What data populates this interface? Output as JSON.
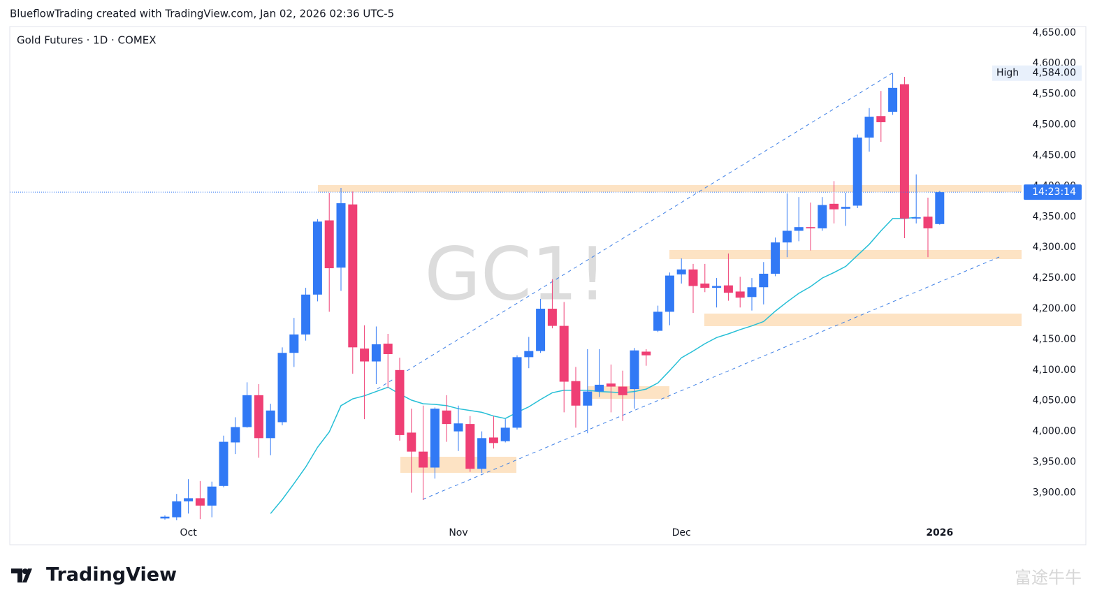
{
  "header": "BlueflowTrading created with TradingView.com, Jan 02, 2026 02:36 UTC-5",
  "chart_data": {
    "type": "candlestick",
    "title": "Gold Futures · 1D · COMEX",
    "watermark": "GC1!",
    "categories": [
      null,
      null,
      "Oct",
      null,
      null,
      null,
      null,
      null,
      null,
      null,
      null,
      null,
      null,
      null,
      null,
      null,
      null,
      null,
      null,
      null,
      null,
      null,
      null,
      null,
      null,
      "Nov",
      null,
      null,
      null,
      null,
      null,
      null,
      null,
      null,
      null,
      null,
      null,
      null,
      null,
      null,
      null,
      null,
      null,
      null,
      "Dec",
      null,
      null,
      null,
      null,
      null,
      null,
      null,
      null,
      null,
      null,
      null,
      null,
      null,
      null,
      null,
      null,
      null,
      null,
      null,
      null,
      null,
      "2026"
    ],
    "open": [
      3858,
      3860,
      3886,
      3891,
      3879,
      3911,
      3982,
      4007,
      4059,
      3989,
      4015,
      4128,
      4158,
      4223,
      4344,
      4267,
      4370,
      4135,
      4114,
      4143,
      4100,
      3998,
      3967,
      3941,
      4034,
      4000,
      4012,
      3939,
      3990,
      3984,
      4006,
      4121,
      4131,
      4200,
      4172,
      4082,
      4042,
      4065,
      4078,
      4073,
      4069,
      4130,
      4164,
      4195,
      4256,
      4264,
      4241,
      4234,
      4238,
      4228,
      4219,
      4235,
      4257,
      4308,
      4327,
      4333,
      4331,
      4371,
      4363,
      4368,
      4479,
      4514,
      4521,
      4566,
      4347,
      4350,
      4338
    ],
    "high": [
      3863,
      3898,
      3922,
      3919,
      3918,
      3993,
      4023,
      4080,
      4077,
      4045,
      4137,
      4185,
      4234,
      4346,
      4389,
      4397,
      4391,
      4173,
      4171,
      4159,
      4120,
      4037,
      4042,
      4039,
      4059,
      4042,
      4025,
      4000,
      4025,
      4020,
      4124,
      4154,
      4216,
      4248,
      4211,
      4105,
      4134,
      4134,
      4109,
      4099,
      4136,
      4134,
      4205,
      4259,
      4282,
      4273,
      4273,
      4250,
      4290,
      4252,
      4250,
      4276,
      4316,
      4388,
      4382,
      4373,
      4382,
      4408,
      4389,
      4484,
      4527,
      4555,
      4584,
      4578,
      4419,
      4381,
      4392
    ],
    "low": [
      3856,
      3855,
      3866,
      3857,
      3860,
      3909,
      3963,
      4006,
      3957,
      3961,
      4010,
      4105,
      4148,
      4212,
      4195,
      4229,
      4094,
      4020,
      4077,
      4071,
      3985,
      3900,
      3888,
      3923,
      3983,
      3968,
      3934,
      3932,
      3972,
      3982,
      4003,
      4103,
      4128,
      4168,
      4031,
      4006,
      3997,
      4056,
      4031,
      4017,
      4037,
      4107,
      4162,
      4173,
      4241,
      4193,
      4227,
      4202,
      4213,
      4202,
      4197,
      4207,
      4253,
      4284,
      4310,
      4295,
      4327,
      4339,
      4335,
      4364,
      4456,
      4472,
      4516,
      4315,
      4339,
      4284,
      4337
    ],
    "close": [
      3861,
      3886,
      3891,
      3879,
      3910,
      3983,
      4007,
      4059,
      3989,
      4034,
      4128,
      4158,
      4223,
      4342,
      4266,
      4372,
      4137,
      4114,
      4142,
      4126,
      3994,
      3967,
      3941,
      4037,
      4012,
      4013,
      3939,
      3989,
      3981,
      4006,
      4121,
      4131,
      4200,
      4172,
      4081,
      4042,
      4065,
      4076,
      4073,
      4059,
      4132,
      4124,
      4195,
      4254,
      4264,
      4237,
      4234,
      4237,
      4226,
      4218,
      4235,
      4257,
      4308,
      4327,
      4333,
      4331,
      4369,
      4362,
      4366,
      4479,
      4513,
      4504,
      4560,
      4347,
      4349,
      4331,
      4390
    ],
    "up_color": "#3179f5",
    "down_color": "#ef3f74",
    "ma": {
      "color": "#26bfd6",
      "values": [
        null,
        null,
        null,
        null,
        null,
        null,
        null,
        null,
        null,
        3866,
        3889,
        3915,
        3942,
        3974,
        3999,
        4042,
        4053,
        4058,
        4065,
        4072,
        4061,
        4051,
        4045,
        4044,
        4042,
        4037,
        4034,
        4031,
        4025,
        4021,
        4031,
        4040,
        4052,
        4063,
        4067,
        4067,
        4067,
        4065,
        4064,
        4063,
        4065,
        4069,
        4079,
        4099,
        4120,
        4131,
        4143,
        4153,
        4159,
        4166,
        4172,
        4179,
        4196,
        4211,
        4225,
        4236,
        4250,
        4259,
        4269,
        4287,
        4305,
        4327,
        4347,
        4347,
        4349,
        null,
        null
      ]
    },
    "ylim": [
      3855,
      4660
    ],
    "yticks": [
      {
        "value": 3900,
        "label": "3,900.00"
      },
      {
        "value": 3950,
        "label": "3,950.00"
      },
      {
        "value": 4000,
        "label": "4,000.00"
      },
      {
        "value": 4050,
        "label": "4,050.00"
      },
      {
        "value": 4100,
        "label": "4,100.00"
      },
      {
        "value": 4150,
        "label": "4,150.00"
      },
      {
        "value": 4200,
        "label": "4,200.00"
      },
      {
        "value": 4250,
        "label": "4,250.00"
      },
      {
        "value": 4300,
        "label": "4,300.00"
      },
      {
        "value": 4350,
        "label": "4,350.00"
      },
      {
        "value": 4400,
        "label": "4,400.00"
      },
      {
        "value": 4450,
        "label": "4,450.00"
      },
      {
        "value": 4500,
        "label": "4,500.00"
      },
      {
        "value": 4550,
        "label": "4,550.00"
      },
      {
        "value": 4600,
        "label": "4,600.00"
      },
      {
        "value": 4650,
        "label": "4,650.00"
      }
    ],
    "grid": false,
    "high_label": "High",
    "high_value": {
      "value": 4584,
      "label": "4,584.00"
    },
    "countdown": "14:23:14"
  },
  "footer_brand": "TradingView",
  "corner_watermark": "富途牛牛"
}
